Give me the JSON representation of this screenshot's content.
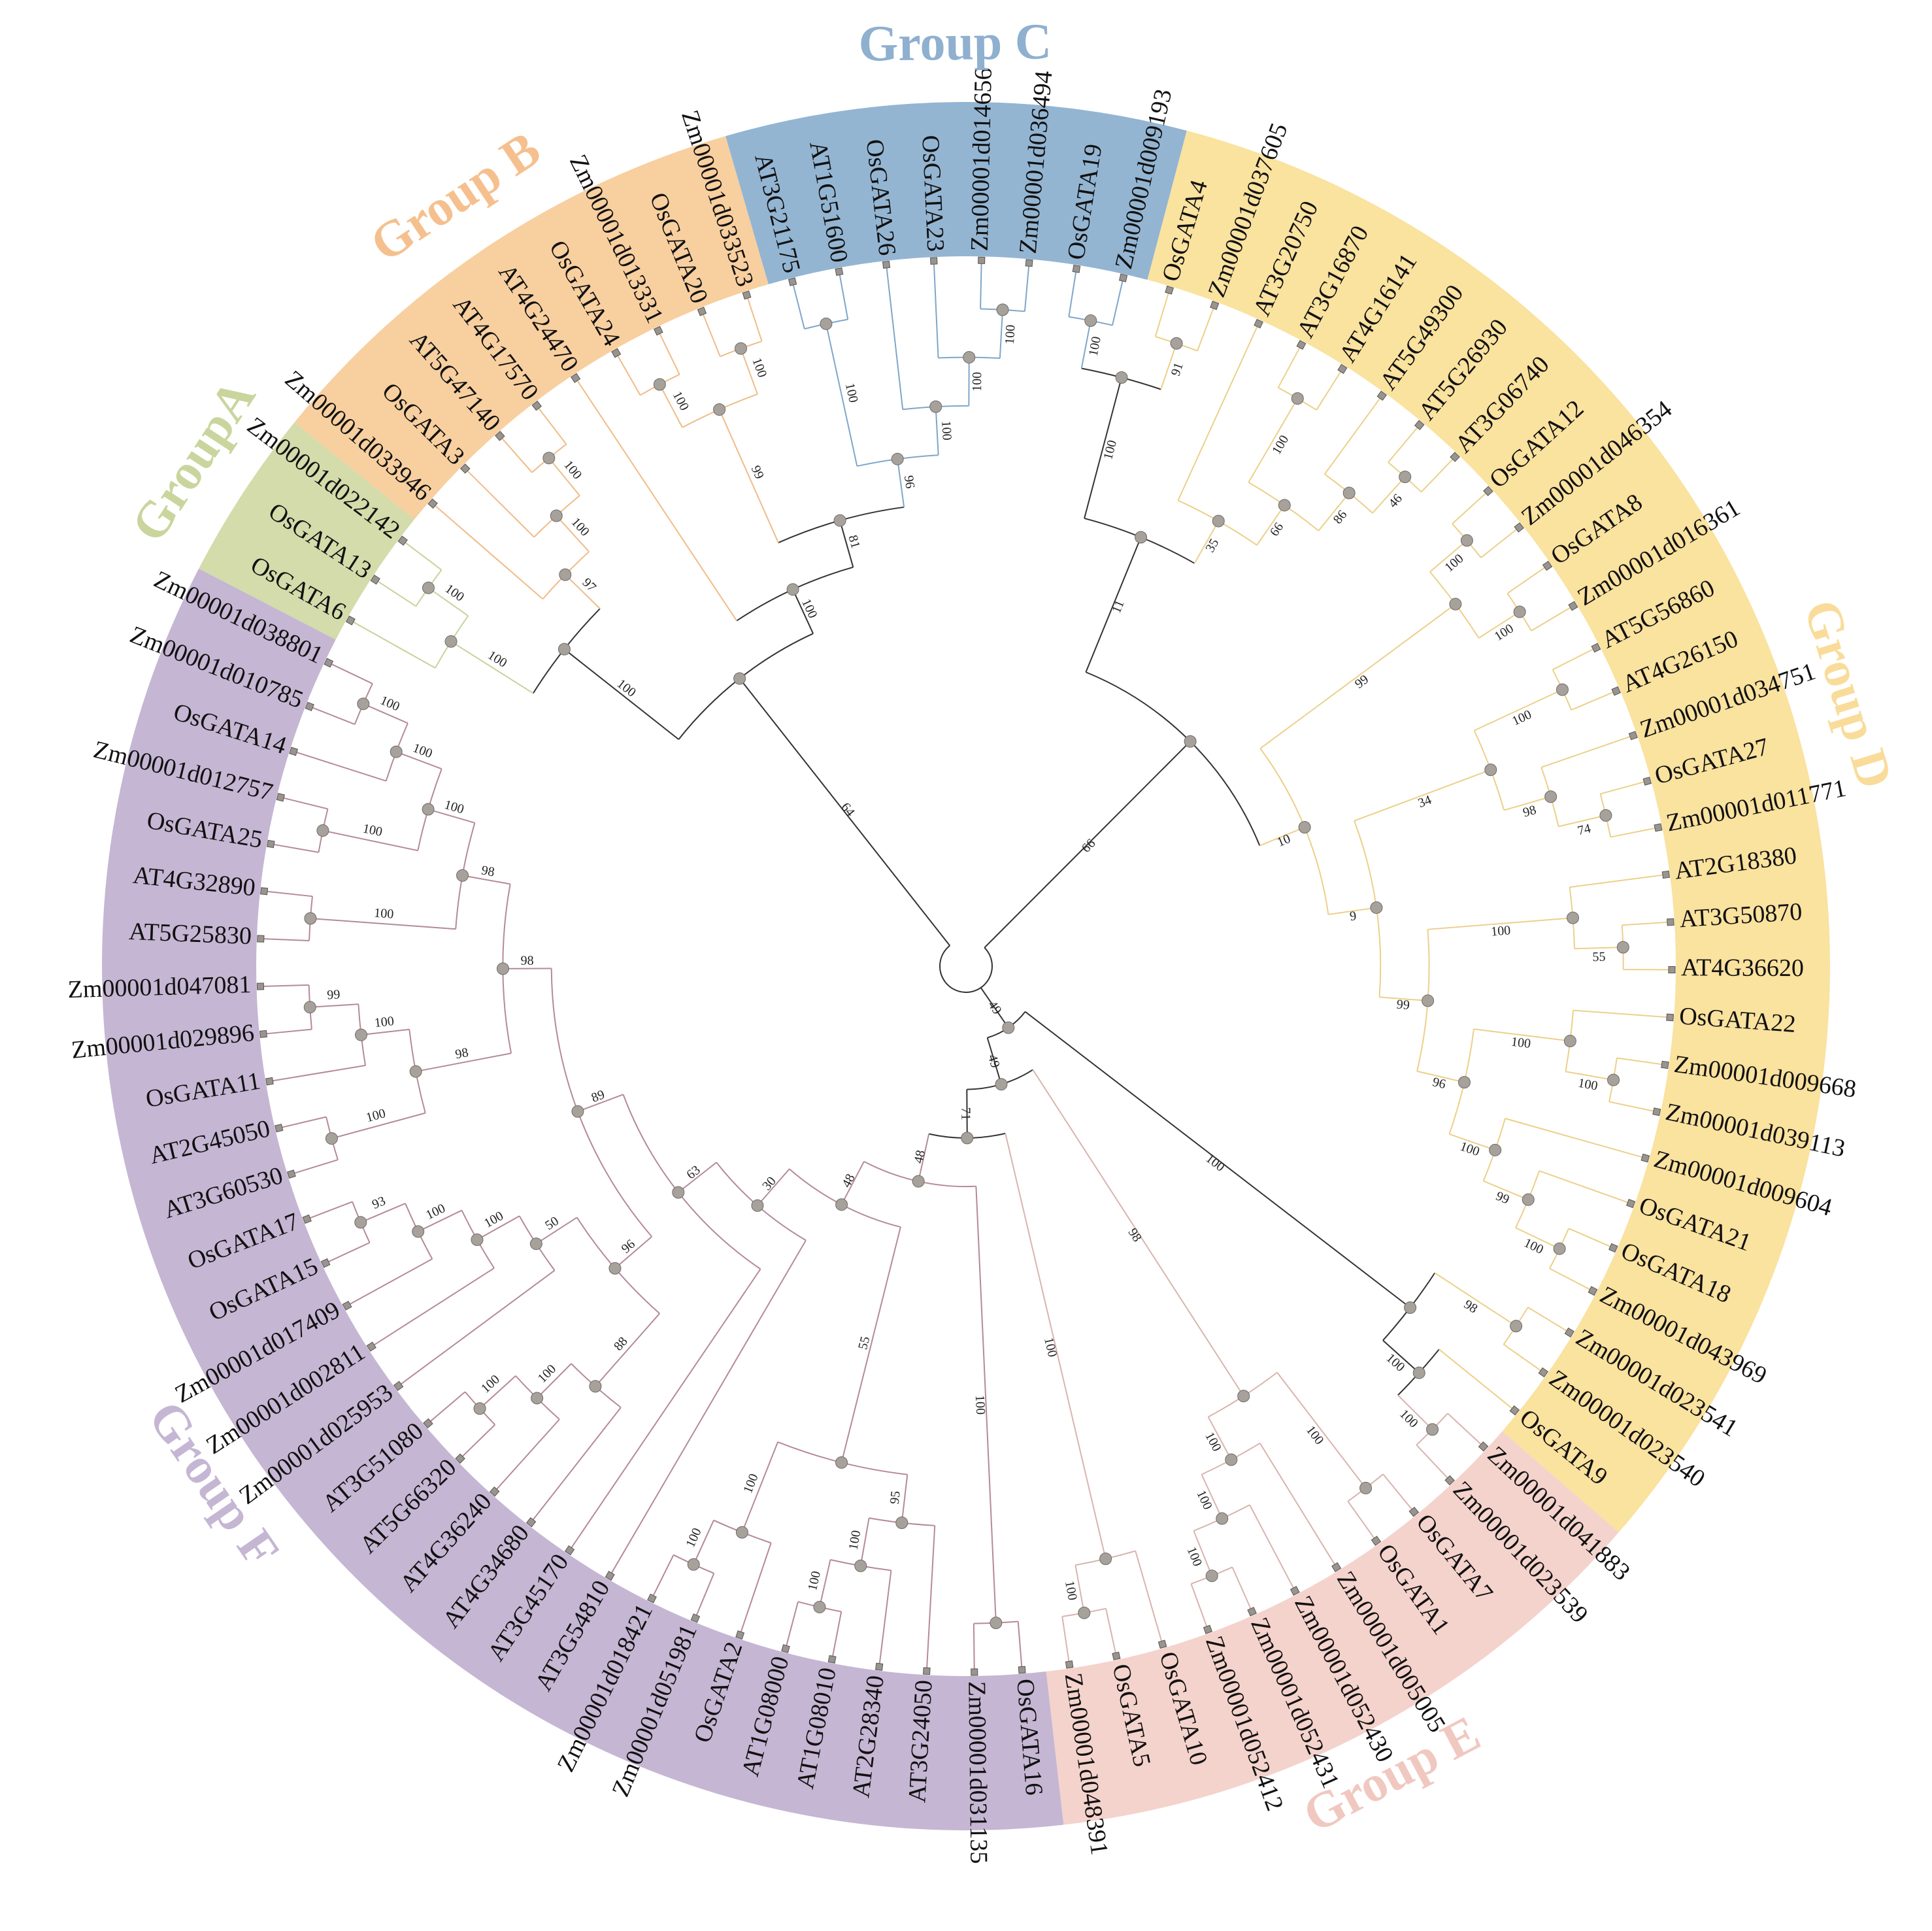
{
  "groups": [
    {
      "label": "Group C",
      "first": "AT3G21175",
      "last": "Zm00001d009193",
      "color": "#93b5d2",
      "text_color": "#8fb0cf",
      "branch_color": "#7fa6c9"
    },
    {
      "label": "Group D",
      "first": "OsGATA4",
      "last": "OsGATA9",
      "color": "#fae29f",
      "text_color": "#f9dc9a",
      "branch_color": "#ecd08a"
    },
    {
      "label": "Group E",
      "first": "Zm00001d041883",
      "last": "Zm00001d048391",
      "color": "#f4d3cc",
      "text_color": "#f0c8c0",
      "branch_color": "#d9b4ae"
    },
    {
      "label": "Group F",
      "first": "OsGATA16",
      "last": "Zm00001d038801",
      "color": "#c5b6d3",
      "text_color": "#c5b6d3",
      "branch_color": "#b58a98"
    },
    {
      "label": "GroupA",
      "first": "OsGATA6",
      "last": "Zm00001d022142",
      "color": "#d3dcaa",
      "text_color": "#c9d59d",
      "branch_color": "#c5d49a"
    },
    {
      "label": "Group B",
      "first": "Zm00001d033946",
      "last": "Zm00001d033523",
      "color": "#f8cf9f",
      "text_color": "#f5c08e",
      "branch_color": "#f0bc88"
    }
  ],
  "colors": {
    "node": "#a7a19b",
    "internal_branch": "#333333",
    "leaf_marker": "#9a948e"
  },
  "tree": {
    "c": [
      {
        "b": 66,
        "c": [
          {
            "b": 11,
            "c": [
              {
                "b": 100,
                "c": [
                  {
                    "b": 100,
                    "c": [
                      "OsGATA19",
                      "Zm00001d009193"
                    ]
                  },
                  {
                    "b": 91,
                    "c": [
                      "OsGATA4",
                      "Zm00001d037605"
                    ]
                  }
                ]
              },
              {
                "b": 35,
                "c": [
                  "AT3G20750",
                  {
                    "b": 66,
                    "c": [
                      {
                        "b": 100,
                        "c": [
                          "AT3G16870",
                          "AT4G16141"
                        ]
                      },
                      {
                        "b": 86,
                        "c": [
                          "AT5G49300",
                          {
                            "b": 46,
                            "c": [
                              "AT5G26930",
                              "AT3G06740"
                            ]
                          }
                        ]
                      }
                    ]
                  }
                ]
              }
            ]
          },
          {
            "b": 10,
            "c": [
              {
                "b": 99,
                "c": [
                  {
                    "b": 100,
                    "c": [
                      "OsGATA12",
                      "Zm00001d046354"
                    ]
                  },
                  {
                    "b": 100,
                    "c": [
                      "OsGATA8",
                      "Zm00001d016361"
                    ]
                  }
                ]
              },
              {
                "b": 9,
                "c": [
                  {
                    "b": 34,
                    "c": [
                      {
                        "b": 100,
                        "c": [
                          "AT5G56860",
                          "AT4G26150"
                        ]
                      },
                      {
                        "b": 98,
                        "c": [
                          "Zm00001d034751",
                          {
                            "b": 74,
                            "c": [
                              "OsGATA27",
                              "Zm00001d011771"
                            ]
                          }
                        ]
                      }
                    ]
                  },
                  {
                    "b": 99,
                    "c": [
                      {
                        "b": 100,
                        "c": [
                          "AT2G18380",
                          {
                            "b": 55,
                            "c": [
                              "AT3G50870",
                              "AT4G36620"
                            ]
                          }
                        ]
                      },
                      {
                        "b": 96,
                        "c": [
                          {
                            "b": 100,
                            "c": [
                              "OsGATA22",
                              {
                                "b": 100,
                                "c": [
                                  "Zm00001d009668",
                                  "Zm00001d039113"
                                ]
                              }
                            ]
                          },
                          {
                            "b": 100,
                            "c": [
                              "Zm00001d009604",
                              {
                                "b": 99,
                                "c": [
                                  "OsGATA21",
                                  {
                                    "b": 100,
                                    "c": [
                                      "OsGATA18",
                                      "Zm00001d043969"
                                    ]
                                  }
                                ]
                              }
                            ]
                          }
                        ]
                      }
                    ]
                  }
                ]
              }
            ]
          }
        ]
      },
      {
        "b": 49,
        "c": [
          {
            "b": 100,
            "c": [
              {
                "b": 98,
                "c": [
                  "Zm00001d023541",
                  "Zm00001d023540"
                ]
              },
              {
                "b": 100,
                "c": [
                  "OsGATA9",
                  {
                    "b": 100,
                    "c": [
                      "Zm00001d041883",
                      "Zm00001d023539"
                    ]
                  }
                ]
              }
            ]
          },
          {
            "b": 49,
            "c": [
              {
                "b": 98,
                "c": [
                  {
                    "b": 100,
                    "c": [
                      "OsGATA7",
                      "OsGATA1"
                    ]
                  },
                  {
                    "b": 100,
                    "c": [
                      "Zm00001d005005",
                      {
                        "b": 100,
                        "c": [
                          "Zm00001d052430",
                          {
                            "b": 100,
                            "c": [
                              "Zm00001d052431",
                              "Zm00001d052412"
                            ]
                          }
                        ]
                      }
                    ]
                  }
                ]
              },
              {
                "b": 71,
                "c": [
                  {
                    "b": 100,
                    "c": [
                      "OsGATA10",
                      {
                        "b": 100,
                        "c": [
                          "OsGATA5",
                          "Zm00001d048391"
                        ]
                      }
                    ]
                  },
                  {
                    "b": 48,
                    "c": [
                      {
                        "b": 100,
                        "c": [
                          "OsGATA16",
                          "Zm00001d031135"
                        ]
                      },
                      {
                        "b": 48,
                        "c": [
                          {
                            "b": 55,
                            "c": [
                              {
                                "b": 95,
                                "c": [
                                  "AT3G24050",
                                  {
                                    "b": 100,
                                    "c": [
                                      "AT2G28340",
                                      {
                                        "b": 100,
                                        "c": [
                                          "AT1G08010",
                                          "AT1G08000"
                                        ]
                                      }
                                    ]
                                  }
                                ]
                              },
                              {
                                "b": 100,
                                "c": [
                                  "OsGATA2",
                                  {
                                    "b": 100,
                                    "c": [
                                      "Zm00001d051981",
                                      "Zm00001d018421"
                                    ]
                                  }
                                ]
                              }
                            ]
                          },
                          {
                            "b": 30,
                            "c": [
                              "AT3G54810",
                              {
                                "b": 63,
                                "c": [
                                  "AT3G45170",
                                  {
                                    "b": 89,
                                    "c": [
                                      {
                                        "b": 96,
                                        "c": [
                                          {
                                            "b": 88,
                                            "c": [
                                              "AT4G34680",
                                              {
                                                "b": 100,
                                                "c": [
                                                  "AT4G36240",
                                                  {
                                                    "b": 100,
                                                    "c": [
                                                      "AT5G66320",
                                                      "AT3G51080"
                                                    ]
                                                  }
                                                ]
                                              }
                                            ]
                                          },
                                          {
                                            "b": 50,
                                            "c": [
                                              "Zm00001d025953",
                                              {
                                                "b": 100,
                                                "c": [
                                                  "Zm00001d002811",
                                                  {
                                                    "b": 100,
                                                    "c": [
                                                      "Zm00001d017409",
                                                      {
                                                        "b": 93,
                                                        "c": [
                                                          "OsGATA15",
                                                          "OsGATA17"
                                                        ]
                                                      }
                                                    ]
                                                  }
                                                ]
                                              }
                                            ]
                                          }
                                        ]
                                      },
                                      {
                                        "b": 98,
                                        "c": [
                                          {
                                            "b": 98,
                                            "c": [
                                              {
                                                "b": 100,
                                                "c": [
                                                  "AT3G60530",
                                                  "AT2G45050"
                                                ]
                                              },
                                              {
                                                "b": 100,
                                                "c": [
                                                  "OsGATA11",
                                                  {
                                                    "b": 99,
                                                    "c": [
                                                      "Zm00001d029896",
                                                      "Zm00001d047081"
                                                    ]
                                                  }
                                                ]
                                              }
                                            ]
                                          },
                                          {
                                            "b": 98,
                                            "c": [
                                              {
                                                "b": 100,
                                                "c": [
                                                  "AT5G25830",
                                                  "AT4G32890"
                                                ]
                                              },
                                              {
                                                "b": 100,
                                                "c": [
                                                  {
                                                    "b": 100,
                                                    "c": [
                                                      "OsGATA25",
                                                      "Zm00001d012757"
                                                    ]
                                                  },
                                                  {
                                                    "b": 100,
                                                    "c": [
                                                      "OsGATA14",
                                                      {
                                                        "b": 100,
                                                        "c": [
                                                          "Zm00001d010785",
                                                          "Zm00001d038801"
                                                        ]
                                                      }
                                                    ]
                                                  }
                                                ]
                                              }
                                            ]
                                          }
                                        ]
                                      }
                                    ]
                                  }
                                ]
                              }
                            ]
                          }
                        ]
                      }
                    ]
                  }
                ]
              }
            ]
          }
        ]
      },
      {
        "b": 64,
        "c": [
          {
            "b": 100,
            "c": [
              {
                "b": 100,
                "c": [
                  "OsGATA6",
                  {
                    "b": 100,
                    "c": [
                      "OsGATA13",
                      "Zm00001d022142"
                    ]
                  }
                ]
              },
              {
                "b": 97,
                "c": [
                  "Zm00001d033946",
                  {
                    "b": 100,
                    "c": [
                      "OsGATA3",
                      {
                        "b": 100,
                        "c": [
                          "AT5G47140",
                          "AT4G17570"
                        ]
                      }
                    ]
                  }
                ]
              }
            ]
          },
          {
            "b": 100,
            "c": [
              "AT4G24470",
              {
                "b": 81,
                "c": [
                  {
                    "b": 99,
                    "c": [
                      {
                        "b": 100,
                        "c": [
                          "OsGATA24",
                          "Zm00001d013331"
                        ]
                      },
                      {
                        "b": 100,
                        "c": [
                          "OsGATA20",
                          "Zm00001d033523"
                        ]
                      }
                    ]
                  },
                  {
                    "b": 96,
                    "c": [
                      {
                        "b": 100,
                        "c": [
                          "AT3G21175",
                          "AT1G51600"
                        ]
                      },
                      {
                        "b": 100,
                        "c": [
                          "OsGATA26",
                          {
                            "b": 100,
                            "c": [
                              "OsGATA23",
                              {
                                "b": 100,
                                "c": [
                                  "Zm00001d014656",
                                  "Zm00001d036494"
                                ]
                              }
                            ]
                          }
                        ]
                      }
                    ]
                  }
                ]
              }
            ]
          }
        ]
      }
    ]
  }
}
